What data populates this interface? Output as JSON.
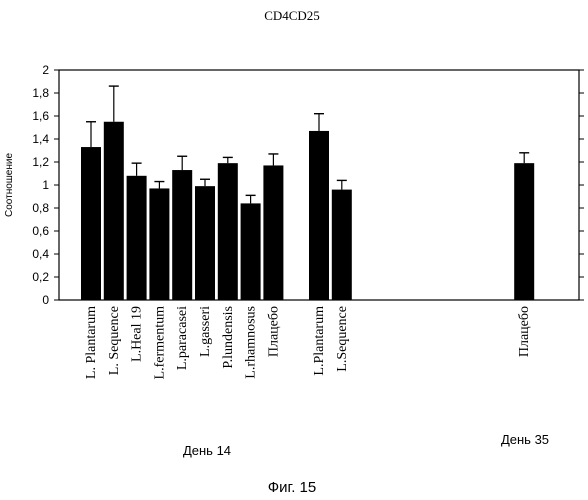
{
  "chart_data": {
    "type": "bar",
    "title": "CD4CD25",
    "ylabel": "Соотношение",
    "xlabel": "",
    "ylim": [
      0,
      2
    ],
    "yticks": [
      "0",
      "0,2",
      "0,4",
      "0,6",
      "0,8",
      "1",
      "1,2",
      "1,4",
      "1,6",
      "1,8",
      "2"
    ],
    "ytick_values": [
      0,
      0.2,
      0.4,
      0.6,
      0.8,
      1,
      1.2,
      1.4,
      1.6,
      1.8,
      2
    ],
    "grid": false,
    "bar_color": "#000000",
    "categories": [
      "L. Plantarum",
      "L. Sequence",
      "L.Heal 19",
      "L.fermentum",
      "L.paracasei",
      "L.gasseri",
      "P.lundensis",
      "L.rhamnosus",
      "Плацебо",
      "",
      "L.Plantarum",
      "L.Sequence",
      "",
      "",
      "",
      "",
      "",
      "",
      "",
      "Плацебо"
    ],
    "values": [
      1.33,
      1.55,
      1.08,
      0.97,
      1.13,
      0.99,
      1.19,
      0.84,
      1.17,
      null,
      1.47,
      0.96,
      null,
      null,
      null,
      null,
      null,
      null,
      null,
      1.19
    ],
    "errors": [
      0.22,
      0.31,
      0.11,
      0.06,
      0.12,
      0.06,
      0.05,
      0.07,
      0.1,
      null,
      0.15,
      0.08,
      null,
      null,
      null,
      null,
      null,
      null,
      null,
      0.09
    ],
    "groups": [
      {
        "label": "День 14"
      },
      {
        "label": "День 35"
      }
    ]
  },
  "caption": "Фиг. 15"
}
